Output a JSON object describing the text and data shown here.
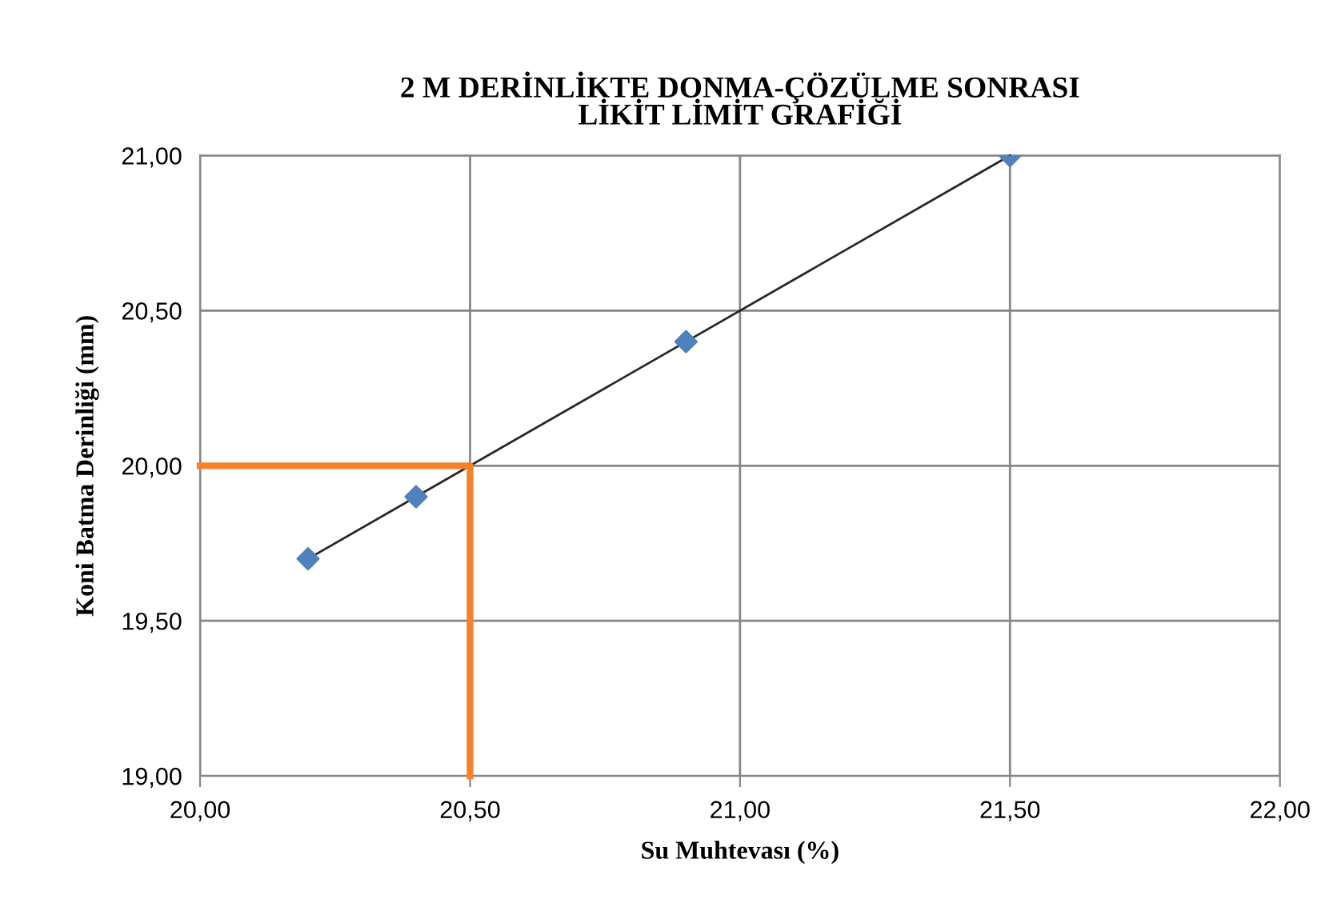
{
  "chart_data": {
    "type": "scatter",
    "title": "2 M DERİNLİKTE DONMA-ÇÖZÜLME SONRASI\nLİKİT LİMİT GRAFİĞİ",
    "xlabel": "Su Muhtevası (%)",
    "ylabel": "Koni Batma Derinliği (mm)",
    "x": [
      20.2,
      20.4,
      20.9,
      21.5
    ],
    "series": [
      {
        "color": "#4f81bd",
        "marker": "diamond",
        "values": [
          19.7,
          19.9,
          20.4,
          21.0
        ]
      },
      {
        "type": "line",
        "color": "#262626",
        "marker": "none",
        "x": [
          20.2,
          21.5
        ],
        "values": [
          19.7,
          21.0
        ]
      },
      {
        "type": "line",
        "color": "#f7802a",
        "marker": "none",
        "x": [
          20.0,
          20.5,
          20.5
        ],
        "values": [
          20.0,
          20.0,
          19.0
        ]
      }
    ],
    "xlim": [
      20,
      22
    ],
    "xticks": [
      {
        "value": 20,
        "label": "20,00"
      },
      {
        "value": 20.5,
        "label": "20,50"
      },
      {
        "value": 21,
        "label": "21,00"
      },
      {
        "value": 21.5,
        "label": "21,50"
      },
      {
        "value": 22,
        "label": "22,00"
      }
    ],
    "ylim": [
      19,
      21
    ],
    "yticks": [
      {
        "value": 19,
        "label": "19,00"
      },
      {
        "value": 19.5,
        "label": "19,50"
      },
      {
        "value": 20,
        "label": "20,00"
      },
      {
        "value": 20.5,
        "label": "20,50"
      },
      {
        "value": 21,
        "label": "21,00"
      }
    ],
    "grid": true,
    "legend": false
  }
}
